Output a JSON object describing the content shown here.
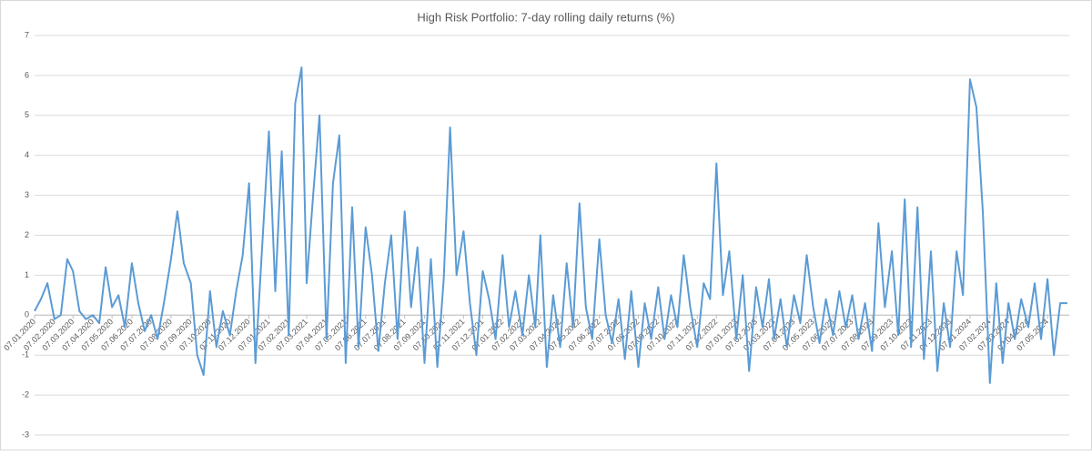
{
  "chart_data": {
    "type": "line",
    "title": "High Risk Portfolio: 7-day rolling daily returns (%)",
    "color": "#5b9bd5",
    "grid": true,
    "ylim": [
      -3,
      7
    ],
    "yticks": [
      -3,
      -2,
      -1,
      0,
      1,
      2,
      3,
      4,
      5,
      6,
      7
    ],
    "xlim": [
      "07.01.2020",
      "10.06.2024"
    ],
    "xticks": [
      "07.01.2020",
      "07.02.2020",
      "07.03.2020",
      "07.04.2020",
      "07.05.2020",
      "07.06.2020",
      "07.07.2020",
      "07.08.2020",
      "07.09.2020",
      "07.10.2020",
      "07.11.2020",
      "07.12.2020",
      "07.01.2021",
      "07.02.2021",
      "07.03.2021",
      "07.04.2021",
      "07.05.2021",
      "07.06.2021",
      "07.07.2021",
      "07.08.2021",
      "07.09.2021",
      "07.10.2021",
      "07.11.2021",
      "07.12.2021",
      "07.01.2022",
      "07.02.2022",
      "07.03.2022",
      "07.04.2022",
      "07.05.2022",
      "07.06.2022",
      "07.07.2022",
      "07.08.2022",
      "07.09.2022",
      "07.10.2022",
      "07.11.2022",
      "07.12.2022",
      "07.01.2023",
      "07.02.2023",
      "07.03.2023",
      "07.04.2023",
      "07.05.2023",
      "07.06.2023",
      "07.07.2023",
      "07.08.2023",
      "07.09.2023",
      "07.10.2023",
      "07.11.2023",
      "07.12.2023",
      "07.01.2024",
      "07.02.2024",
      "07.03.2024",
      "07.04.2024",
      "07.05.2024"
    ],
    "x": [
      "07.01.2020",
      "17.01.2020",
      "27.01.2020",
      "07.02.2020",
      "17.02.2020",
      "27.02.2020",
      "07.03.2020",
      "17.03.2020",
      "27.03.2020",
      "07.04.2020",
      "17.04.2020",
      "27.04.2020",
      "07.05.2020",
      "17.05.2020",
      "27.05.2020",
      "07.06.2020",
      "17.06.2020",
      "27.06.2020",
      "07.07.2020",
      "17.07.2020",
      "27.07.2020",
      "07.08.2020",
      "17.08.2020",
      "27.08.2020",
      "07.09.2020",
      "17.09.2020",
      "27.09.2020",
      "07.10.2020",
      "17.10.2020",
      "27.10.2020",
      "07.11.2020",
      "17.11.2020",
      "27.11.2020",
      "07.12.2020",
      "17.12.2020",
      "27.12.2020",
      "07.01.2021",
      "17.01.2021",
      "27.01.2021",
      "07.02.2021",
      "17.02.2021",
      "27.02.2021",
      "07.03.2021",
      "17.03.2021",
      "27.03.2021",
      "07.04.2021",
      "17.04.2021",
      "27.04.2021",
      "07.05.2021",
      "17.05.2021",
      "27.05.2021",
      "07.06.2021",
      "17.06.2021",
      "27.06.2021",
      "07.07.2021",
      "17.07.2021",
      "27.07.2021",
      "07.08.2021",
      "17.08.2021",
      "27.08.2021",
      "07.09.2021",
      "17.09.2021",
      "27.09.2021",
      "07.10.2021",
      "17.10.2021",
      "27.10.2021",
      "07.11.2021",
      "17.11.2021",
      "27.11.2021",
      "07.12.2021",
      "17.12.2021",
      "27.12.2021",
      "07.01.2022",
      "17.01.2022",
      "27.01.2022",
      "07.02.2022",
      "17.02.2022",
      "27.02.2022",
      "07.03.2022",
      "17.03.2022",
      "27.03.2022",
      "07.04.2022",
      "17.04.2022",
      "27.04.2022",
      "07.05.2022",
      "17.05.2022",
      "27.05.2022",
      "07.06.2022",
      "17.06.2022",
      "27.06.2022",
      "07.07.2022",
      "17.07.2022",
      "27.07.2022",
      "07.08.2022",
      "17.08.2022",
      "27.08.2022",
      "07.09.2022",
      "17.09.2022",
      "27.09.2022",
      "07.10.2022",
      "17.10.2022",
      "27.10.2022",
      "07.11.2022",
      "17.11.2022",
      "27.11.2022",
      "07.12.2022",
      "17.12.2022",
      "27.12.2022",
      "07.01.2023",
      "17.01.2023",
      "27.01.2023",
      "07.02.2023",
      "17.02.2023",
      "27.02.2023",
      "07.03.2023",
      "17.03.2023",
      "27.03.2023",
      "07.04.2023",
      "17.04.2023",
      "27.04.2023",
      "07.05.2023",
      "17.05.2023",
      "27.05.2023",
      "07.06.2023",
      "17.06.2023",
      "27.06.2023",
      "07.07.2023",
      "17.07.2023",
      "27.07.2023",
      "07.08.2023",
      "17.08.2023",
      "27.08.2023",
      "07.09.2023",
      "17.09.2023",
      "27.09.2023",
      "07.10.2023",
      "17.10.2023",
      "27.10.2023",
      "07.11.2023",
      "17.11.2023",
      "27.11.2023",
      "07.12.2023",
      "17.12.2023",
      "27.12.2023",
      "07.01.2024",
      "17.01.2024",
      "27.01.2024",
      "07.02.2024",
      "17.02.2024",
      "27.02.2024",
      "07.03.2024",
      "17.03.2024",
      "27.03.2024",
      "07.04.2024",
      "17.04.2024",
      "27.04.2024",
      "07.05.2024",
      "17.05.2024",
      "27.05.2024",
      "07.06.2024"
    ],
    "values": [
      0.1,
      0.4,
      0.8,
      -0.1,
      0.0,
      1.4,
      1.1,
      0.1,
      -0.1,
      0.0,
      -0.2,
      1.2,
      0.2,
      0.5,
      -0.3,
      1.3,
      0.3,
      -0.4,
      0.0,
      -0.6,
      0.3,
      1.4,
      2.6,
      1.3,
      0.8,
      -1.0,
      -1.5,
      0.6,
      -0.8,
      0.1,
      -0.5,
      0.6,
      1.5,
      3.3,
      -1.2,
      1.6,
      4.6,
      0.6,
      4.1,
      -0.5,
      5.3,
      6.2,
      0.8,
      3.0,
      5.0,
      -0.6,
      3.3,
      4.5,
      -1.2,
      2.7,
      -0.8,
      2.2,
      1.0,
      -0.9,
      0.8,
      2.0,
      -0.6,
      2.6,
      0.2,
      1.7,
      -1.2,
      1.4,
      -1.3,
      0.9,
      4.7,
      1.0,
      2.1,
      0.3,
      -1.0,
      1.1,
      0.4,
      -0.6,
      1.5,
      -0.3,
      0.6,
      -0.5,
      1.0,
      -0.3,
      2.0,
      -1.3,
      0.5,
      -0.8,
      1.3,
      -0.3,
      2.8,
      0.2,
      -0.6,
      1.9,
      0.0,
      -0.7,
      0.4,
      -1.1,
      0.6,
      -1.3,
      0.3,
      -0.6,
      0.7,
      -0.6,
      0.5,
      -0.3,
      1.5,
      0.2,
      -0.8,
      0.8,
      0.4,
      3.8,
      0.5,
      1.6,
      -0.6,
      1.0,
      -1.4,
      0.7,
      -0.3,
      0.9,
      -0.6,
      0.4,
      -0.8,
      0.5,
      -0.2,
      1.5,
      0.2,
      -0.7,
      0.4,
      -0.5,
      0.6,
      -0.3,
      0.5,
      -0.6,
      0.3,
      -0.9,
      2.3,
      0.2,
      1.6,
      -0.5,
      2.9,
      -0.8,
      2.7,
      -1.1,
      1.6,
      -1.4,
      0.3,
      -0.8,
      1.6,
      0.5,
      5.9,
      5.2,
      2.6,
      -1.7,
      0.8,
      -1.2,
      0.3,
      -0.6,
      0.4,
      -0.3,
      0.8,
      -0.6,
      0.9,
      -1.0,
      0.3,
      0.3
    ]
  }
}
